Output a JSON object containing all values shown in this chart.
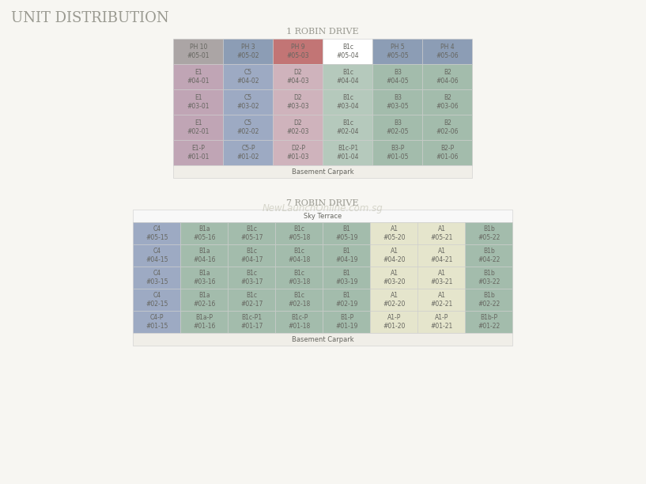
{
  "title": "Unit Distribution",
  "bg_color": "#f7f6f2",
  "title_color": "#999990",
  "building1_title": "1 Robin Drive",
  "building1_rows_data": [
    [
      {
        "label": "PH 10\n#05-01",
        "color": "#aba5a5"
      },
      {
        "label": "PH 3\n#05-02",
        "color": "#8c9db5"
      },
      {
        "label": "PH 9\n#05-03",
        "color": "#c27575"
      },
      {
        "label": "B1c\n#05-04",
        "color": "#ffffff"
      },
      {
        "label": "PH 5\n#05-05",
        "color": "#8c9db5"
      },
      {
        "label": "PH 4\n#05-06",
        "color": "#8c9db5"
      }
    ],
    [
      {
        "label": "E1\n#04-01",
        "color": "#c0a5b5"
      },
      {
        "label": "C5\n#04-02",
        "color": "#9daac3"
      },
      {
        "label": "D2\n#04-03",
        "color": "#cfb3bc"
      },
      {
        "label": "B1c\n#04-04",
        "color": "#b5c9bc"
      },
      {
        "label": "B3\n#04-05",
        "color": "#a3bcac"
      },
      {
        "label": "B2\n#04-06",
        "color": "#a3bcac"
      }
    ],
    [
      {
        "label": "E1\n#03-01",
        "color": "#c0a5b5"
      },
      {
        "label": "C5\n#03-02",
        "color": "#9daac3"
      },
      {
        "label": "D2\n#03-03",
        "color": "#cfb3bc"
      },
      {
        "label": "B1c\n#03-04",
        "color": "#b5c9bc"
      },
      {
        "label": "B3\n#03-05",
        "color": "#a3bcac"
      },
      {
        "label": "B2\n#03-06",
        "color": "#a3bcac"
      }
    ],
    [
      {
        "label": "E1\n#02-01",
        "color": "#c0a5b5"
      },
      {
        "label": "C5\n#02-02",
        "color": "#9daac3"
      },
      {
        "label": "D2\n#02-03",
        "color": "#cfb3bc"
      },
      {
        "label": "B1c\n#02-04",
        "color": "#b5c9bc"
      },
      {
        "label": "B3\n#02-05",
        "color": "#a3bcac"
      },
      {
        "label": "B2\n#02-06",
        "color": "#a3bcac"
      }
    ],
    [
      {
        "label": "E1-P\n#01-01",
        "color": "#c0a5b5"
      },
      {
        "label": "C5-P\n#01-02",
        "color": "#9daac3"
      },
      {
        "label": "D2-P\n#01-03",
        "color": "#cfb3bc"
      },
      {
        "label": "B1c-P1\n#01-04",
        "color": "#b5c9bc"
      },
      {
        "label": "B3-P\n#01-05",
        "color": "#a3bcac"
      },
      {
        "label": "B2-P\n#01-06",
        "color": "#a3bcac"
      }
    ]
  ],
  "building1_basement": "Basement Carpark",
  "building2_title": "7 Robin Drive",
  "building2_sky_terrace": "Sky Terrace",
  "building2_rows_data": [
    [
      {
        "label": "C4\n#05-15",
        "color": "#9daac3"
      },
      {
        "label": "B1a\n#05-16",
        "color": "#a3bcac"
      },
      {
        "label": "B1c\n#05-17",
        "color": "#a3bcac"
      },
      {
        "label": "B1c\n#05-18",
        "color": "#a3bcac"
      },
      {
        "label": "B1\n#05-19",
        "color": "#a3bcac"
      },
      {
        "label": "A1\n#05-20",
        "color": "#e5e5cc"
      },
      {
        "label": "A1\n#05-21",
        "color": "#e5e5cc"
      },
      {
        "label": "B1b\n#05-22",
        "color": "#a3bcac"
      }
    ],
    [
      {
        "label": "C4\n#04-15",
        "color": "#9daac3"
      },
      {
        "label": "B1a\n#04-16",
        "color": "#a3bcac"
      },
      {
        "label": "B1c\n#04-17",
        "color": "#a3bcac"
      },
      {
        "label": "B1c\n#04-18",
        "color": "#a3bcac"
      },
      {
        "label": "B1\n#04-19",
        "color": "#a3bcac"
      },
      {
        "label": "A1\n#04-20",
        "color": "#e5e5cc"
      },
      {
        "label": "A1\n#04-21",
        "color": "#e5e5cc"
      },
      {
        "label": "B1b\n#04-22",
        "color": "#a3bcac"
      }
    ],
    [
      {
        "label": "C4\n#03-15",
        "color": "#9daac3"
      },
      {
        "label": "B1a\n#03-16",
        "color": "#a3bcac"
      },
      {
        "label": "B1c\n#03-17",
        "color": "#a3bcac"
      },
      {
        "label": "B1c\n#03-18",
        "color": "#a3bcac"
      },
      {
        "label": "B1\n#03-19",
        "color": "#a3bcac"
      },
      {
        "label": "A1\n#03-20",
        "color": "#e5e5cc"
      },
      {
        "label": "A1\n#03-21",
        "color": "#e5e5cc"
      },
      {
        "label": "B1b\n#03-22",
        "color": "#a3bcac"
      }
    ],
    [
      {
        "label": "C4\n#02-15",
        "color": "#9daac3"
      },
      {
        "label": "B1a\n#02-16",
        "color": "#a3bcac"
      },
      {
        "label": "B1c\n#02-17",
        "color": "#a3bcac"
      },
      {
        "label": "B1c\n#02-18",
        "color": "#a3bcac"
      },
      {
        "label": "B1\n#02-19",
        "color": "#a3bcac"
      },
      {
        "label": "A1\n#02-20",
        "color": "#e5e5cc"
      },
      {
        "label": "A1\n#02-21",
        "color": "#e5e5cc"
      },
      {
        "label": "B1b\n#02-22",
        "color": "#a3bcac"
      }
    ],
    [
      {
        "label": "C4-P\n#01-15",
        "color": "#9daac3"
      },
      {
        "label": "B1a-P\n#01-16",
        "color": "#a3bcac"
      },
      {
        "label": "B1c-P1\n#01-17",
        "color": "#a3bcac"
      },
      {
        "label": "B1c-P\n#01-18",
        "color": "#a3bcac"
      },
      {
        "label": "B1-P\n#01-19",
        "color": "#a3bcac"
      },
      {
        "label": "A1-P\n#01-20",
        "color": "#e5e5cc"
      },
      {
        "label": "A1-P\n#01-21",
        "color": "#e5e5cc"
      },
      {
        "label": "B1b-P\n#01-22",
        "color": "#a3bcac"
      }
    ]
  ],
  "building2_basement": "Basement Carpark",
  "cell_text_color": "#666660",
  "cell_fontsize": 5.5,
  "border_color": "#cccccc",
  "basement_color": "#f0eee8",
  "sky_color": "#f8f8f8",
  "watermark": "NewLaunchOnline.com.sg",
  "watermark_color": "#bbbbaa"
}
